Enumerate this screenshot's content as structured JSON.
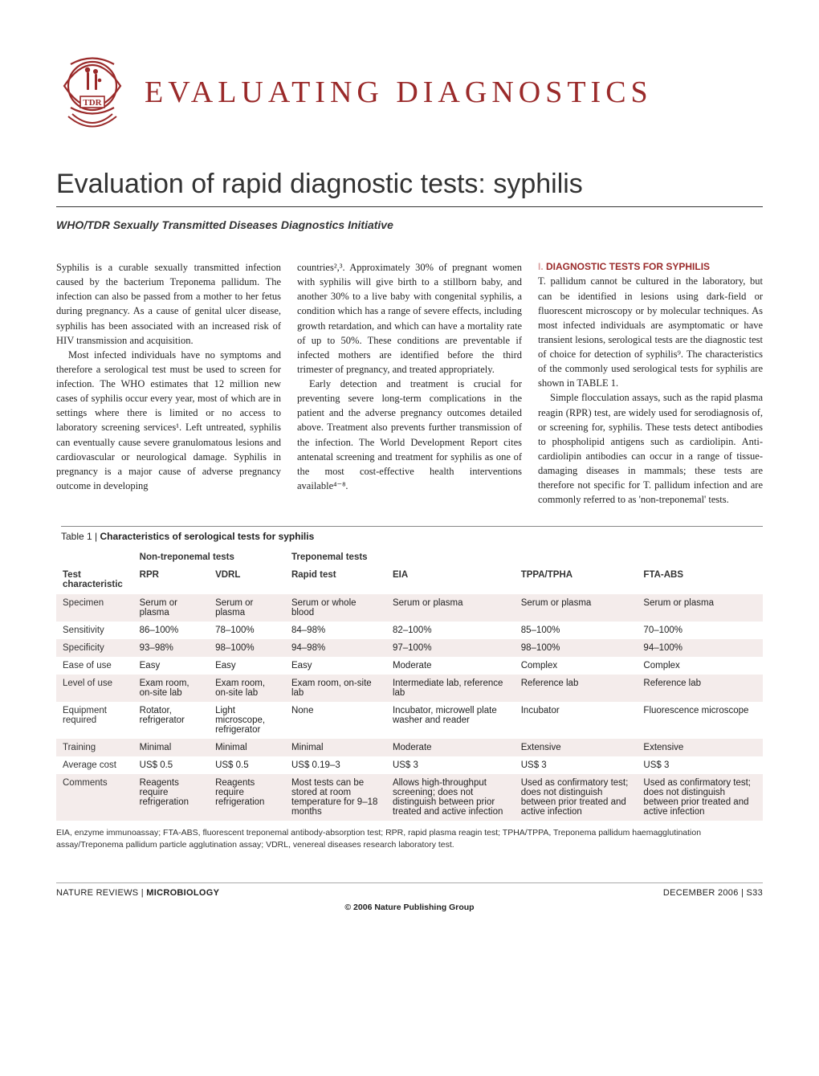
{
  "banner": "EVALUATING DIAGNOSTICS",
  "title": "Evaluation of rapid diagnostic tests: syphilis",
  "subtitle": "WHO/TDR Sexually Transmitted Diseases Diagnostics Initiative",
  "section1": {
    "num": "I.",
    "head": "DIAGNOSTIC TESTS FOR SYPHILIS"
  },
  "body": {
    "col1p1": "Syphilis is a curable sexually transmitted infection caused by the bacterium Treponema pallidum. The infection can also be passed from a mother to her fetus during pregnancy. As a cause of genital ulcer disease, syphilis has been associated with an increased risk of HIV transmission and acquisition.",
    "col1p2": "Most infected individuals have no symptoms and therefore a serological test must be used to screen for infection. The WHO estimates that 12 million new cases of syphilis occur every year, most of which are in settings where there is limited or no access to laboratory screening services¹. Left untreated, syphilis can eventually cause severe granulomatous lesions and cardiovascular or neurological damage. Syphilis in pregnancy is a major cause of adverse pregnancy outcome in developing",
    "col2p1": "countries²,³. Approximately 30% of pregnant women with syphilis will give birth to a stillborn baby, and another 30% to a live baby with congenital syphilis, a condition which has a range of severe effects, including growth retardation, and which can have a mortality rate of up to 50%. These conditions are preventable if infected mothers are identified before the third trimester of pregnancy, and treated appropriately.",
    "col2p2": "Early detection and treatment is crucial for preventing severe long-term complications in the patient and the adverse pregnancy outcomes detailed above. Treatment also prevents further transmission of the infection. The World Development Report cites antenatal screening and treatment for syphilis as one of the most cost-effective health interventions available⁴⁻⁸.",
    "col3p1": "T. pallidum cannot be cultured in the laboratory, but can be identified in lesions using dark-field or fluorescent microscopy or by molecular techniques. As most infected individuals are asymptomatic or have transient lesions, serological tests are the diagnostic test of choice for detection of syphilis⁹. The characteristics of the commonly used serological tests for syphilis are shown in TABLE 1.",
    "col3p2": "Simple flocculation assays, such as the rapid plasma reagin (RPR) test, are widely used for serodiagnosis of, or screening for, syphilis. These tests detect antibodies to phospholipid antigens such as cardiolipin. Anti-cardiolipin antibodies can occur in a range of tissue-damaging diseases in mammals; these tests are therefore not specific for T. pallidum infection and are commonly referred to as 'non-treponemal' tests."
  },
  "table": {
    "number": "Table 1 |",
    "title": "Characteristics of serological tests for syphilis",
    "group_headers": {
      "char": "Test characteristic",
      "nt": "Non-treponemal tests",
      "tp": "Treponemal tests"
    },
    "columns": [
      "RPR",
      "VDRL",
      "Rapid test",
      "EIA",
      "TPPA/TPHA",
      "FTA-ABS"
    ],
    "rows": [
      {
        "label": "Specimen",
        "cells": [
          "Serum or plasma",
          "Serum or plasma",
          "Serum or whole blood",
          "Serum or plasma",
          "Serum or plasma",
          "Serum or plasma"
        ]
      },
      {
        "label": "Sensitivity",
        "cells": [
          "86–100%",
          "78–100%",
          "84–98%",
          "82–100%",
          "85–100%",
          "70–100%"
        ]
      },
      {
        "label": "Specificity",
        "cells": [
          "93–98%",
          "98–100%",
          "94–98%",
          "97–100%",
          "98–100%",
          "94–100%"
        ]
      },
      {
        "label": "Ease of use",
        "cells": [
          "Easy",
          "Easy",
          "Easy",
          "Moderate",
          "Complex",
          "Complex"
        ]
      },
      {
        "label": "Level of use",
        "cells": [
          "Exam room, on-site lab",
          "Exam room, on-site lab",
          "Exam room, on-site lab",
          "Intermediate lab, reference lab",
          "Reference lab",
          "Reference lab"
        ]
      },
      {
        "label": "Equipment required",
        "cells": [
          "Rotator, refrigerator",
          "Light microscope, refrigerator",
          "None",
          "Incubator, microwell plate washer and reader",
          "Incubator",
          "Fluorescence microscope"
        ]
      },
      {
        "label": "Training",
        "cells": [
          "Minimal",
          "Minimal",
          "Minimal",
          "Moderate",
          "Extensive",
          "Extensive"
        ]
      },
      {
        "label": "Average cost",
        "cells": [
          "US$ 0.5",
          "US$ 0.5",
          "US$ 0.19–3",
          "US$ 3",
          "US$ 3",
          "US$ 3"
        ]
      },
      {
        "label": "Comments",
        "cells": [
          "Reagents require refrigeration",
          "Reagents require refrigeration",
          "Most tests can be stored at room temperature for 9–18 months",
          "Allows high-throughput screening; does not distinguish between prior treated and active infection",
          "Used as confirmatory test; does not distinguish between prior treated and active infection",
          "Used as confirmatory test; does not distinguish between prior treated and active infection"
        ]
      }
    ],
    "footnote": "EIA, enzyme immunoassay; FTA-ABS, fluorescent treponemal antibody-absorption test; RPR, rapid plasma reagin test; TPHA/TPPA, Treponema pallidum haemagglutination assay/Treponema pallidum particle agglutination assay; VDRL, venereal diseases research laboratory test."
  },
  "footer": {
    "left_prefix": "NATURE REVIEWS | ",
    "left_journal": "MICROBIOLOGY",
    "right": "DECEMBER 2006 | S33",
    "copyright": "© 2006 Nature Publishing Group"
  },
  "colors": {
    "brand": "#9a2a2a",
    "row_tint": "#f4eceb"
  }
}
